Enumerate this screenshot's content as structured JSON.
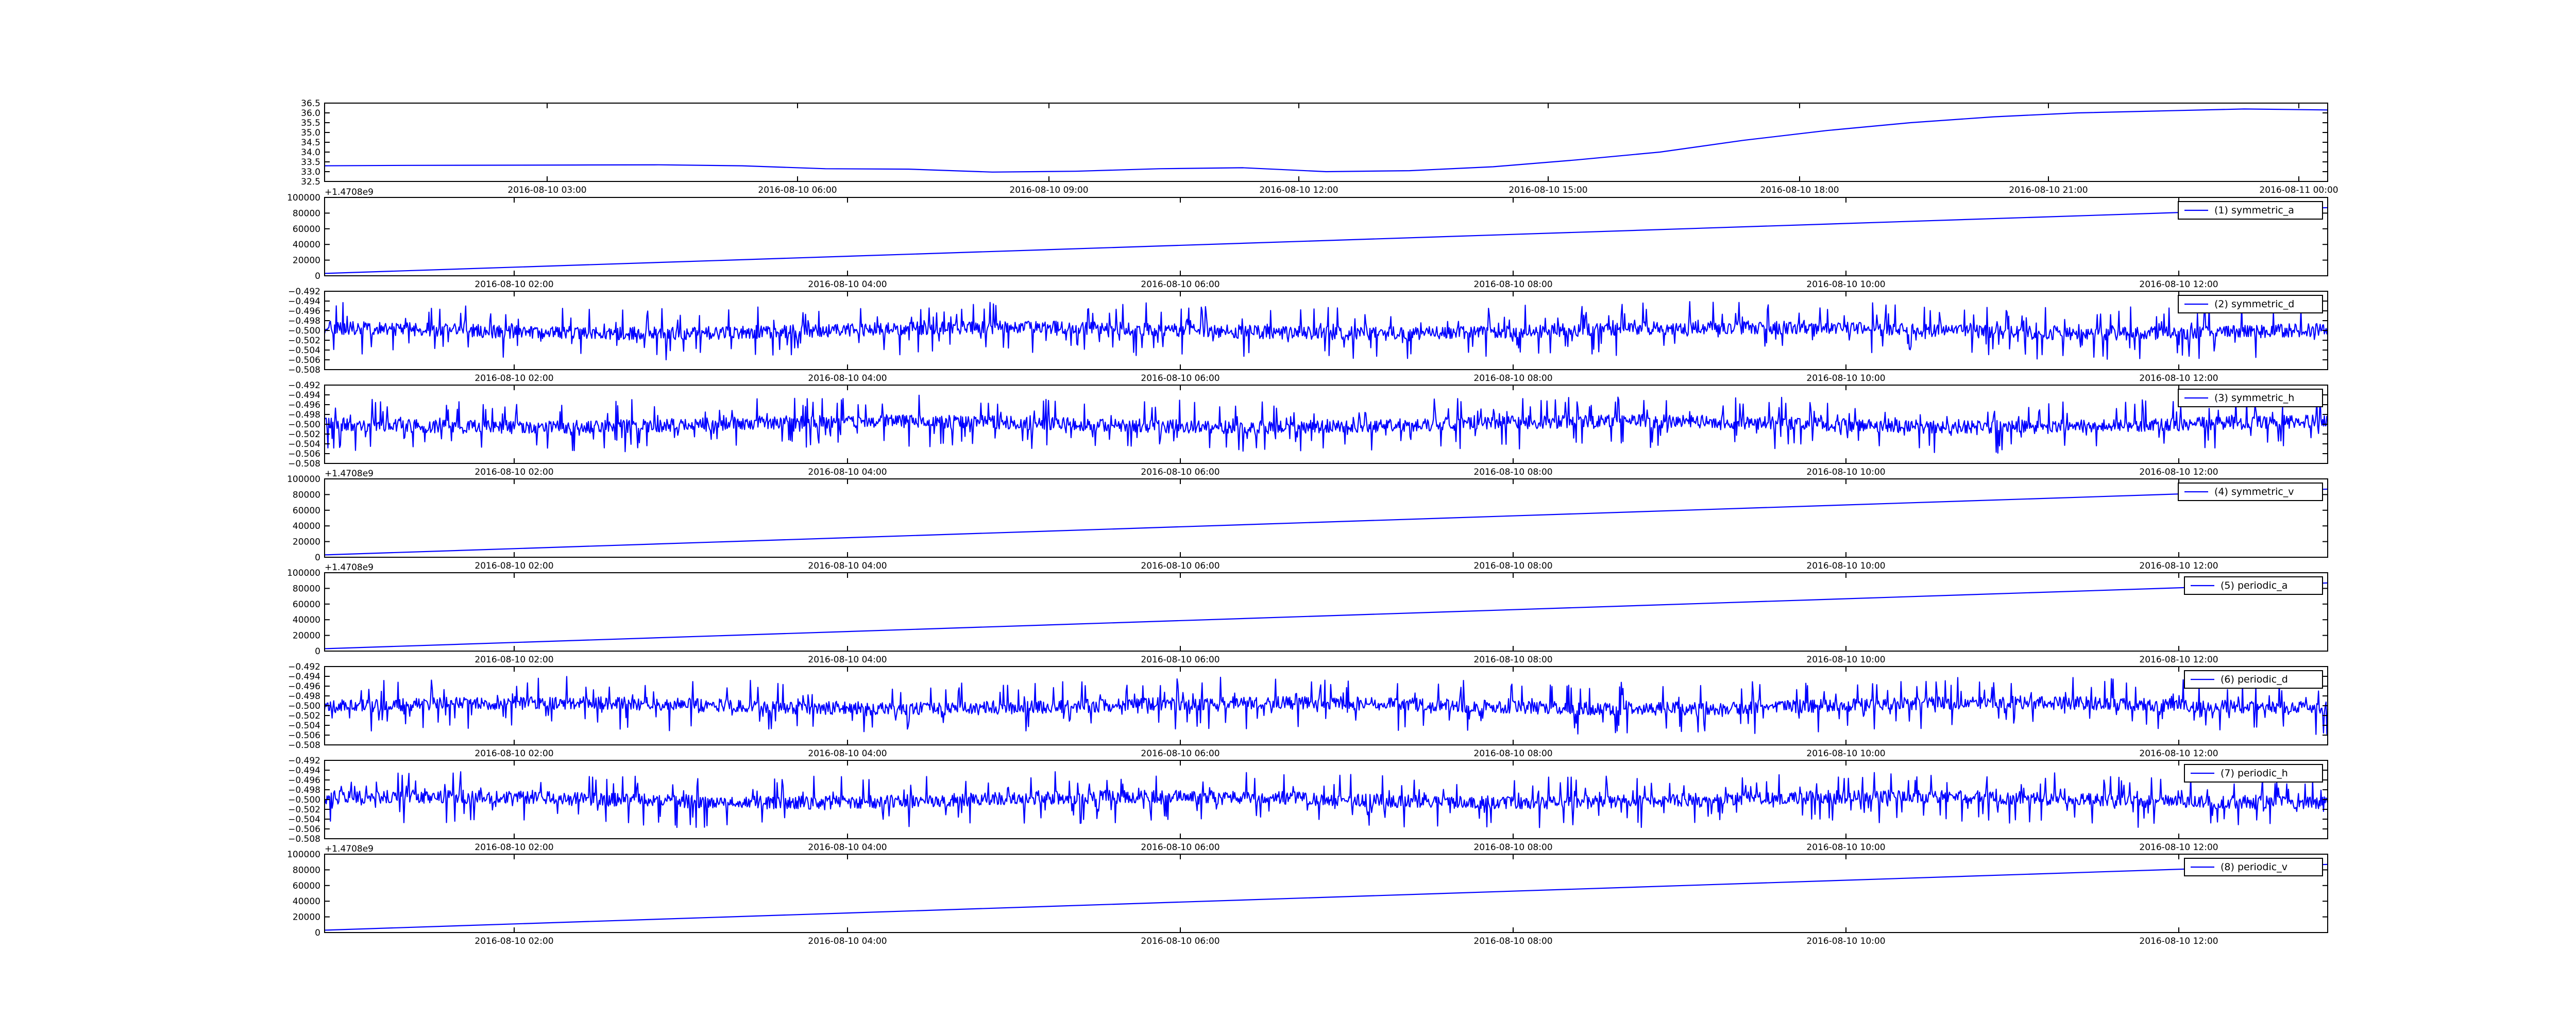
{
  "chart_data": [
    {
      "type": "line",
      "offset_label": "",
      "legend": "",
      "x_ticks": [
        "2016-08-10 03:00",
        "2016-08-10 06:00",
        "2016-08-10 09:00",
        "2016-08-10 12:00",
        "2016-08-10 15:00",
        "2016-08-10 18:00",
        "2016-08-10 21:00",
        "2016-08-11 00:00"
      ],
      "y_ticks": [
        "32.5",
        "33.0",
        "33.5",
        "34.0",
        "34.5",
        "35.0",
        "35.5",
        "36.0",
        "36.5"
      ],
      "ylim": [
        32.5,
        36.5
      ],
      "x_hours": [
        0,
        1,
        2,
        3,
        4,
        5,
        6,
        7,
        8,
        9,
        10,
        11,
        12,
        13,
        14,
        15,
        16,
        17,
        18,
        19,
        20,
        21,
        22,
        23,
        24
      ],
      "values": [
        33.3,
        33.32,
        33.33,
        33.34,
        33.35,
        33.3,
        33.15,
        33.13,
        32.98,
        33.02,
        33.15,
        33.2,
        33.0,
        33.05,
        33.25,
        33.6,
        34.0,
        34.6,
        35.1,
        35.5,
        35.8,
        36.0,
        36.1,
        36.2,
        36.15
      ],
      "color": "#0000ff"
    },
    {
      "type": "line",
      "offset_label": "+1.4708e9",
      "legend": "(1) symmetric_a",
      "x_ticks": [
        "2016-08-10 02:00",
        "2016-08-10 04:00",
        "2016-08-10 06:00",
        "2016-08-10 08:00",
        "2016-08-10 10:00",
        "2016-08-10 12:00"
      ],
      "y_ticks": [
        "0",
        "20000",
        "40000",
        "60000",
        "80000",
        "100000"
      ],
      "ylim": [
        0,
        100000
      ],
      "line_start": 3000,
      "line_end": 87000,
      "color": "#0000ff"
    },
    {
      "type": "line",
      "offset_label": "",
      "legend": "(2) symmetric_d",
      "x_ticks": [
        "2016-08-10 02:00",
        "2016-08-10 04:00",
        "2016-08-10 06:00",
        "2016-08-10 08:00",
        "2016-08-10 10:00",
        "2016-08-10 12:00"
      ],
      "y_ticks": [
        "−0.508",
        "−0.506",
        "−0.504",
        "−0.502",
        "−0.500",
        "−0.498",
        "−0.496",
        "−0.494",
        "−0.492"
      ],
      "ylim": [
        -0.508,
        -0.492
      ],
      "noise_center": -0.5,
      "noise_amplitude": 0.006,
      "color": "#0000ff"
    },
    {
      "type": "line",
      "offset_label": "",
      "legend": "(3) symmetric_h",
      "x_ticks": [
        "2016-08-10 02:00",
        "2016-08-10 04:00",
        "2016-08-10 06:00",
        "2016-08-10 08:00",
        "2016-08-10 10:00",
        "2016-08-10 12:00"
      ],
      "y_ticks": [
        "−0.508",
        "−0.506",
        "−0.504",
        "−0.502",
        "−0.500",
        "−0.498",
        "−0.496",
        "−0.494",
        "−0.492"
      ],
      "ylim": [
        -0.508,
        -0.492
      ],
      "noise_center": -0.5,
      "noise_amplitude": 0.006,
      "color": "#0000ff"
    },
    {
      "type": "line",
      "offset_label": "+1.4708e9",
      "legend": "(4) symmetric_v",
      "x_ticks": [
        "2016-08-10 02:00",
        "2016-08-10 04:00",
        "2016-08-10 06:00",
        "2016-08-10 08:00",
        "2016-08-10 10:00",
        "2016-08-10 12:00"
      ],
      "y_ticks": [
        "0",
        "20000",
        "40000",
        "60000",
        "80000",
        "100000"
      ],
      "ylim": [
        0,
        100000
      ],
      "line_start": 3000,
      "line_end": 87000,
      "color": "#0000ff"
    },
    {
      "type": "line",
      "offset_label": "+1.4708e9",
      "legend": "(5) periodic_a",
      "x_ticks": [
        "2016-08-10 02:00",
        "2016-08-10 04:00",
        "2016-08-10 06:00",
        "2016-08-10 08:00",
        "2016-08-10 10:00",
        "2016-08-10 12:00"
      ],
      "y_ticks": [
        "0",
        "20000",
        "40000",
        "60000",
        "80000",
        "100000"
      ],
      "ylim": [
        0,
        100000
      ],
      "line_start": 3000,
      "line_end": 87000,
      "color": "#0000ff"
    },
    {
      "type": "line",
      "offset_label": "",
      "legend": "(6) periodic_d",
      "x_ticks": [
        "2016-08-10 02:00",
        "2016-08-10 04:00",
        "2016-08-10 06:00",
        "2016-08-10 08:00",
        "2016-08-10 10:00",
        "2016-08-10 12:00"
      ],
      "y_ticks": [
        "−0.508",
        "−0.506",
        "−0.504",
        "−0.502",
        "−0.500",
        "−0.498",
        "−0.496",
        "−0.494",
        "−0.492"
      ],
      "ylim": [
        -0.508,
        -0.492
      ],
      "noise_center": -0.5,
      "noise_amplitude": 0.006,
      "color": "#0000ff"
    },
    {
      "type": "line",
      "offset_label": "",
      "legend": "(7) periodic_h",
      "x_ticks": [
        "2016-08-10 02:00",
        "2016-08-10 04:00",
        "2016-08-10 06:00",
        "2016-08-10 08:00",
        "2016-08-10 10:00",
        "2016-08-10 12:00"
      ],
      "y_ticks": [
        "−0.508",
        "−0.506",
        "−0.504",
        "−0.502",
        "−0.500",
        "−0.498",
        "−0.496",
        "−0.494",
        "−0.492"
      ],
      "ylim": [
        -0.508,
        -0.492
      ],
      "noise_center": -0.5,
      "noise_amplitude": 0.006,
      "color": "#0000ff"
    },
    {
      "type": "line",
      "offset_label": "+1.4708e9",
      "legend": "(8) periodic_v",
      "x_ticks": [
        "2016-08-10 02:00",
        "2016-08-10 04:00",
        "2016-08-10 06:00",
        "2016-08-10 08:00",
        "2016-08-10 10:00",
        "2016-08-10 12:00"
      ],
      "y_ticks": [
        "0",
        "20000",
        "40000",
        "60000",
        "80000",
        "100000"
      ],
      "ylim": [
        0,
        100000
      ],
      "line_start": 3000,
      "line_end": 87000,
      "color": "#0000ff"
    }
  ]
}
